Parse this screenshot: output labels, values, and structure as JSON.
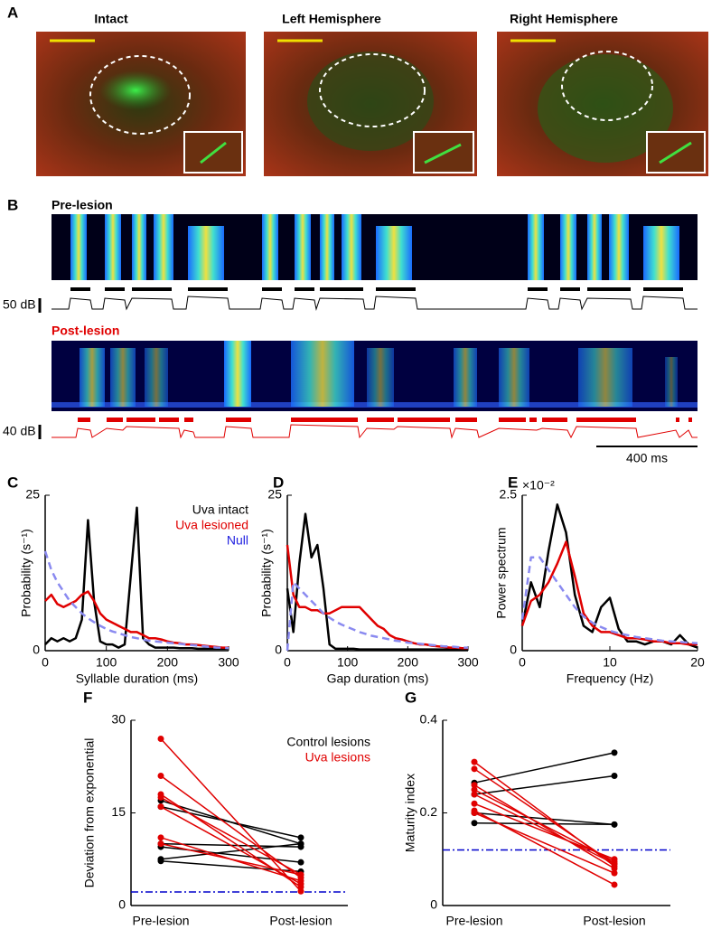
{
  "figure": {
    "panel_a": {
      "label": "A",
      "images": [
        {
          "title": "Intact"
        },
        {
          "title": "Left Hemisphere"
        },
        {
          "title": "Right Hemisphere"
        }
      ]
    },
    "panel_b": {
      "label": "B",
      "pre_label": "Pre-lesion",
      "post_label": "Post-lesion",
      "pre_scale": "50 dB",
      "post_scale": "40 dB",
      "time_scale": "400 ms"
    }
  },
  "chart_data": [
    {
      "type": "line",
      "panel": "C",
      "xlabel": "Syllable duration (ms)",
      "ylabel": "Probability (s⁻¹)",
      "xlim": [
        0,
        300
      ],
      "ylim": [
        0,
        25
      ],
      "xticks": [
        0,
        100,
        200,
        300
      ],
      "yticks": [
        0,
        25
      ],
      "x": [
        0,
        10,
        20,
        30,
        40,
        50,
        60,
        70,
        80,
        90,
        100,
        110,
        120,
        130,
        140,
        150,
        160,
        170,
        180,
        190,
        200,
        210,
        220,
        230,
        240,
        250,
        260,
        270,
        280,
        290,
        300
      ],
      "series": [
        {
          "name": "Uva intact",
          "color": "#000000",
          "values": [
            1,
            2,
            1.5,
            2,
            1.5,
            2,
            5,
            21,
            8,
            1.5,
            1,
            1,
            0.5,
            1,
            12,
            23,
            2,
            1,
            0.5,
            0.5,
            0.5,
            0.5,
            0.4,
            0.4,
            0.4,
            0.3,
            0.3,
            0.3,
            0.3,
            0.3,
            0.3
          ]
        },
        {
          "name": "Uva lesioned",
          "color": "#e00000",
          "values": [
            8,
            9,
            7.5,
            7,
            7.5,
            8,
            9,
            9.5,
            8,
            6,
            5,
            4.5,
            4,
            3.5,
            3,
            3,
            2.5,
            2,
            2,
            1.8,
            1.5,
            1.3,
            1.2,
            1,
            1,
            0.9,
            0.8,
            0.7,
            0.6,
            0.5,
            0.5
          ]
        },
        {
          "name": "Null",
          "color": "#2020e0",
          "line_color": "#8a8af0",
          "dashed": true,
          "values": [
            16,
            13,
            11,
            9.5,
            8,
            7,
            6,
            5.2,
            4.6,
            4,
            3.5,
            3.1,
            2.8,
            2.5,
            2.2,
            2,
            1.8,
            1.6,
            1.5,
            1.4,
            1.3,
            1.2,
            1.1,
            1,
            0.9,
            0.8,
            0.7,
            0.6,
            0.5,
            0.5,
            0.4
          ]
        }
      ]
    },
    {
      "type": "line",
      "panel": "D",
      "xlabel": "Gap duration (ms)",
      "ylabel": "Probability (s⁻¹)",
      "xlim": [
        0,
        300
      ],
      "ylim": [
        0,
        25
      ],
      "xticks": [
        0,
        100,
        200,
        300
      ],
      "yticks": [
        0,
        25
      ],
      "x": [
        0,
        10,
        20,
        30,
        40,
        50,
        60,
        70,
        80,
        90,
        100,
        110,
        120,
        130,
        140,
        150,
        160,
        170,
        180,
        190,
        200,
        210,
        220,
        230,
        240,
        250,
        260,
        270,
        280,
        290,
        300
      ],
      "series": [
        {
          "color": "#000000",
          "values": [
            10,
            3,
            14,
            22,
            15,
            17,
            10,
            1,
            0.3,
            0.3,
            0.3,
            0.3,
            0.2,
            0.2,
            0.2,
            0.2,
            0.2,
            0.2,
            0.2,
            0.2,
            0.2,
            0.2,
            0.2,
            0.2,
            0.2,
            0.2,
            0.2,
            0.2,
            0.2,
            0.2,
            0.2
          ]
        },
        {
          "color": "#e00000",
          "values": [
            17,
            9,
            7,
            7,
            6.5,
            6.5,
            6,
            6,
            6.5,
            7,
            7,
            7,
            7,
            6,
            5,
            4,
            3.5,
            2.5,
            2,
            1.8,
            1.5,
            1.2,
            1,
            1,
            0.8,
            0.7,
            0.6,
            0.5,
            0.5,
            0.4,
            0.4
          ]
        },
        {
          "color": "#8a8af0",
          "dashed": true,
          "values": [
            0,
            11,
            10,
            9,
            8,
            7,
            6,
            5.3,
            4.7,
            4.2,
            3.8,
            3.4,
            3,
            2.7,
            2.4,
            2.2,
            2,
            1.8,
            1.6,
            1.5,
            1.3,
            1.2,
            1.1,
            1,
            0.9,
            0.8,
            0.7,
            0.7,
            0.6,
            0.5,
            0.5
          ]
        }
      ]
    },
    {
      "type": "line",
      "panel": "E",
      "xlabel": "Frequency (Hz)",
      "ylabel": "Power spectrum",
      "y_multiplier": "×10⁻²",
      "xlim": [
        0,
        20
      ],
      "ylim": [
        0,
        2.5
      ],
      "xticks": [
        0,
        10,
        20
      ],
      "yticks": [
        0,
        2.5
      ],
      "x": [
        0,
        1,
        2,
        3,
        4,
        5,
        6,
        7,
        8,
        9,
        10,
        11,
        12,
        13,
        14,
        15,
        16,
        17,
        18,
        19,
        20
      ],
      "series": [
        {
          "color": "#000000",
          "values": [
            0.4,
            1.1,
            0.7,
            1.6,
            2.35,
            1.9,
            0.9,
            0.4,
            0.3,
            0.7,
            0.85,
            0.35,
            0.15,
            0.15,
            0.1,
            0.15,
            0.15,
            0.1,
            0.25,
            0.1,
            0.05
          ]
        },
        {
          "color": "#e00000",
          "values": [
            0.4,
            0.8,
            0.9,
            1.1,
            1.4,
            1.75,
            1.2,
            0.6,
            0.4,
            0.3,
            0.3,
            0.25,
            0.2,
            0.2,
            0.18,
            0.15,
            0.15,
            0.12,
            0.12,
            0.1,
            0.1
          ]
        },
        {
          "color": "#8a8af0",
          "dashed": true,
          "values": [
            0.5,
            1.5,
            1.5,
            1.3,
            1.1,
            0.9,
            0.7,
            0.55,
            0.45,
            0.38,
            0.32,
            0.28,
            0.25,
            0.22,
            0.2,
            0.18,
            0.16,
            0.15,
            0.14,
            0.13,
            0.12
          ]
        }
      ]
    },
    {
      "type": "slope",
      "panel": "F",
      "ylabel": "Deviation from exponential",
      "categories": [
        "Pre-lesion",
        "Post-lesion"
      ],
      "ylim": [
        0,
        30
      ],
      "yticks": [
        0,
        15,
        30
      ],
      "reference_line": {
        "value": 2.2,
        "color": "#0000cc"
      },
      "series": [
        {
          "name": "Control lesions",
          "color": "#000000",
          "values": [
            [
              17,
              10
            ],
            [
              16,
              11
            ],
            [
              10,
              9.5
            ],
            [
              9.5,
              7
            ],
            [
              7.5,
              10
            ],
            [
              7.2,
              5.5
            ]
          ]
        },
        {
          "name": "Uva lesions",
          "color": "#e00000",
          "values": [
            [
              27,
              2.3
            ],
            [
              21,
              4.5
            ],
            [
              18,
              3
            ],
            [
              17.5,
              5
            ],
            [
              11,
              4
            ],
            [
              10,
              5
            ],
            [
              16,
              3.5
            ]
          ]
        }
      ]
    },
    {
      "type": "slope",
      "panel": "G",
      "ylabel": "Maturity index",
      "categories": [
        "Pre-lesion",
        "Post-lesion"
      ],
      "ylim": [
        0,
        0.4
      ],
      "yticks": [
        0,
        0.2,
        0.4
      ],
      "reference_line": {
        "value": 0.12,
        "color": "#0000cc"
      },
      "series": [
        {
          "color": "#000000",
          "values": [
            [
              0.265,
              0.33
            ],
            [
              0.24,
              0.28
            ],
            [
              0.2,
              0.175
            ],
            [
              0.178,
              0.175
            ]
          ]
        },
        {
          "color": "#e00000",
          "values": [
            [
              0.31,
              0.085
            ],
            [
              0.295,
              0.09
            ],
            [
              0.26,
              0.08
            ],
            [
              0.25,
              0.095
            ],
            [
              0.24,
              0.09
            ],
            [
              0.22,
              0.1
            ],
            [
              0.2,
              0.07
            ],
            [
              0.205,
              0.045
            ]
          ]
        }
      ]
    }
  ]
}
